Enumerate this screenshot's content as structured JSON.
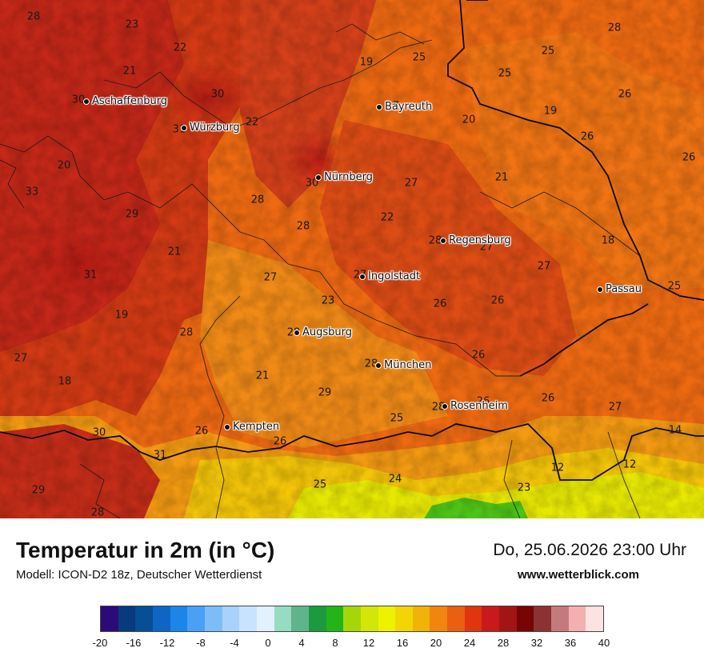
{
  "map": {
    "cities": [
      {
        "name": "Aschaffenburg"
      },
      {
        "name": "Würzburg"
      },
      {
        "name": "Bayreuth"
      },
      {
        "name": "Nürnberg"
      },
      {
        "name": "Regensburg"
      },
      {
        "name": "Ingolstadt"
      },
      {
        "name": "Passau"
      },
      {
        "name": "Augsburg"
      },
      {
        "name": "München"
      },
      {
        "name": "Rosenheim"
      },
      {
        "name": "Kempten"
      }
    ],
    "values": [
      "28",
      "23",
      "22",
      "21",
      "30",
      "30",
      "31",
      "22",
      "20",
      "33",
      "29",
      "21",
      "31",
      "19",
      "28",
      "27",
      "18",
      "30",
      "31",
      "29",
      "28",
      "27",
      "19",
      "25",
      "25",
      "28",
      "25",
      "26",
      "19",
      "20",
      "26",
      "26",
      "21",
      "27",
      "22",
      "28",
      "27",
      "28",
      "18",
      "25",
      "27",
      "26",
      "26",
      "23",
      "28",
      "28",
      "26",
      "21",
      "29",
      "27",
      "26",
      "26",
      "25",
      "26",
      "24",
      "23",
      "12",
      "12",
      "14",
      "25",
      "26",
      "28",
      "27",
      "28",
      "27",
      "30",
      "28"
    ]
  },
  "footer": {
    "title": "Temperatur in 2m (in °C)",
    "model": "Modell: ICON-D2 18z, Deutscher Wetterdienst",
    "datetime": "Do, 25.06.2026 23:00 Uhr",
    "website": "www.wetterblick.com"
  },
  "legend": {
    "colors": [
      "#2c0a7a",
      "#083a80",
      "#064e96",
      "#0d66c3",
      "#1c86e8",
      "#4aa0f5",
      "#7ebcf9",
      "#a8d2fb",
      "#c8e3fd",
      "#e3f0fe",
      "#96dcc0",
      "#5fb48c",
      "#1b9a3e",
      "#22b518",
      "#a6d608",
      "#d2e707",
      "#eef200",
      "#f3d506",
      "#f1b308",
      "#f08510",
      "#ea5f12",
      "#e0350e",
      "#c81a1a",
      "#a31415",
      "#780404",
      "#8d3232",
      "#c47a7a",
      "#f4b0b0",
      "#fde2e2"
    ],
    "ticks": [
      "-20",
      "-16",
      "-12",
      "-8",
      "-4",
      "0",
      "4",
      "8",
      "12",
      "16",
      "20",
      "24",
      "28",
      "32",
      "36",
      "40"
    ]
  }
}
